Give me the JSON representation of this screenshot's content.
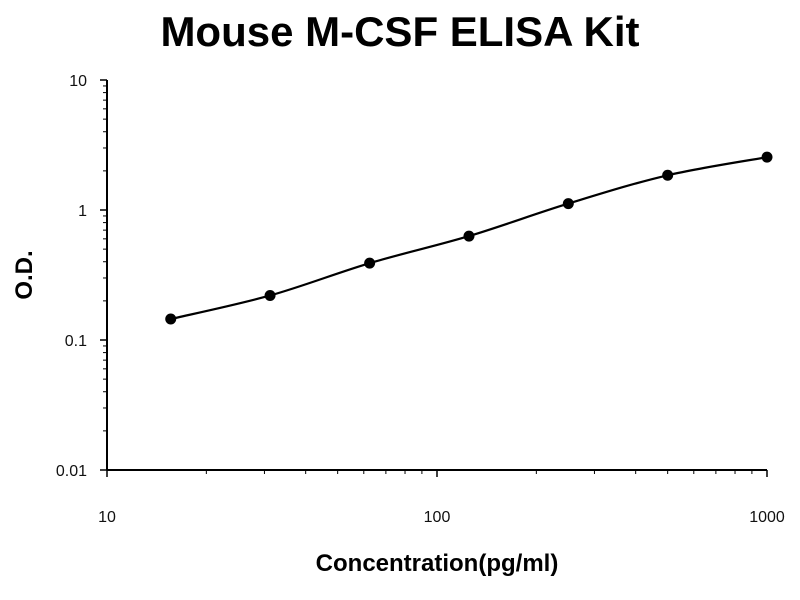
{
  "chart_data": {
    "type": "line",
    "title": "Mouse M-CSF ELISA Kit",
    "xlabel": "Concentration(pg/ml)",
    "ylabel": "O.D.",
    "xscale": "log",
    "yscale": "log",
    "xlim": [
      10,
      1000
    ],
    "ylim": [
      0.01,
      10
    ],
    "x_ticks": [
      10,
      100,
      1000
    ],
    "x_tick_labels": [
      "10",
      "100",
      "1000"
    ],
    "y_ticks": [
      0.01,
      0.1,
      1,
      10
    ],
    "y_tick_labels": [
      "0.01",
      "0.1",
      "1",
      "10"
    ],
    "grid": false,
    "series": [
      {
        "x": [
          15.6,
          31.2,
          62.5,
          125,
          250,
          500,
          1000
        ],
        "y": [
          0.145,
          0.22,
          0.39,
          0.63,
          1.12,
          1.85,
          2.55
        ],
        "color": "#000000",
        "marker": "circle"
      }
    ]
  }
}
